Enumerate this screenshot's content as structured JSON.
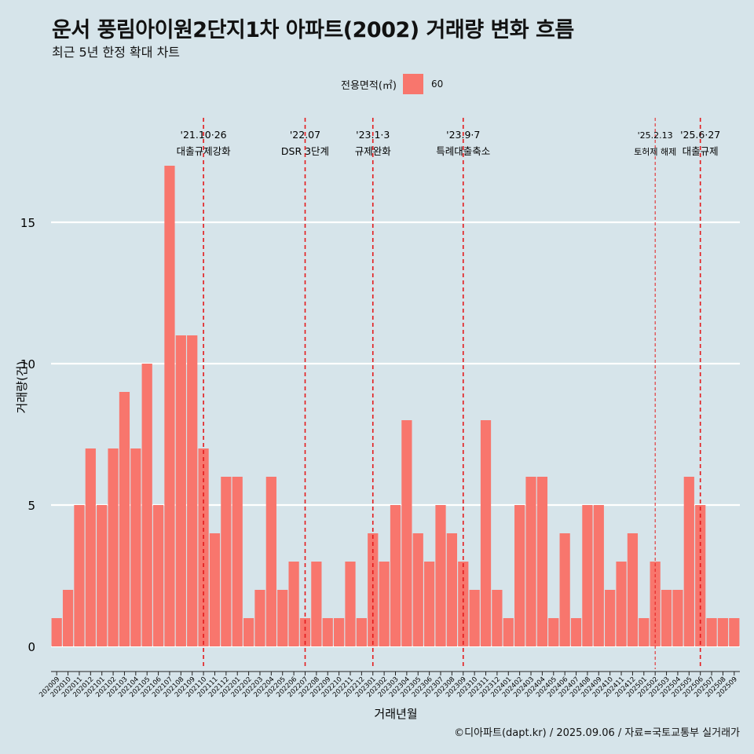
{
  "title": "운서 풍림아이원2단지1차 아파트(2002) 거래량 변화 흐름",
  "subtitle": "최근 5년 한정 확대 차트",
  "legend": {
    "title": "전용면적(㎡)",
    "label": "60",
    "color": "#f8766d"
  },
  "caption": "©디아파트(dapt.kr) / 2025.09.06 / 자료=국토교통부 실거래가",
  "chart_data": {
    "type": "bar",
    "xlabel": "거래년월",
    "ylabel": "거래량(건)",
    "ylim": [
      -0.8,
      19
    ],
    "yticks": [
      0,
      5,
      10,
      15
    ],
    "grid": true,
    "legend_position": "top",
    "bar_color": "#f8766d",
    "event_line_color": "#e41a1c",
    "categories": [
      "202009",
      "202010",
      "202011",
      "202012",
      "202101",
      "202102",
      "202103",
      "202104",
      "202105",
      "202106",
      "202107",
      "202108",
      "202109",
      "202110",
      "202111",
      "202112",
      "202201",
      "202202",
      "202203",
      "202204",
      "202205",
      "202206",
      "202207",
      "202208",
      "202209",
      "202210",
      "202211",
      "202212",
      "202301",
      "202302",
      "202303",
      "202304",
      "202305",
      "202306",
      "202307",
      "202308",
      "202309",
      "202310",
      "202311",
      "202312",
      "202401",
      "202402",
      "202403",
      "202404",
      "202405",
      "202406",
      "202407",
      "202408",
      "202409",
      "202410",
      "202411",
      "202412",
      "202501",
      "202502",
      "202503",
      "202504",
      "202505",
      "202506",
      "202507",
      "202508",
      "202509"
    ],
    "series": [
      {
        "name": "60",
        "values": [
          1,
          2,
          5,
          7,
          5,
          7,
          9,
          7,
          10,
          5,
          17,
          11,
          11,
          7,
          4,
          6,
          6,
          1,
          2,
          6,
          2,
          3,
          1,
          3,
          1,
          1,
          3,
          1,
          4,
          3,
          5,
          8,
          4,
          3,
          5,
          4,
          3,
          2,
          8,
          2,
          1,
          5,
          6,
          6,
          1,
          4,
          1,
          5,
          5,
          2,
          3,
          4,
          1,
          3,
          2,
          2,
          6,
          5,
          1,
          1,
          1
        ]
      }
    ],
    "events": [
      {
        "x": "202110",
        "line1": "'21.10·26",
        "line2": "대출규제강화",
        "style": "major"
      },
      {
        "x": "202207",
        "line1": "'22.07",
        "line2": "DSR 3단계",
        "style": "major"
      },
      {
        "x": "202301",
        "line1": "'23.1·3",
        "line2": "규제완화",
        "style": "major"
      },
      {
        "x": "202309",
        "line1": "'23.9·7",
        "line2": "특례대출축소",
        "style": "major"
      },
      {
        "x": "202502",
        "line1": "'25.2.13",
        "line2": "토허제 해제",
        "style": "minor"
      },
      {
        "x": "202506",
        "line1": "'25.6·27",
        "line2": "대출규제",
        "style": "major"
      }
    ]
  }
}
